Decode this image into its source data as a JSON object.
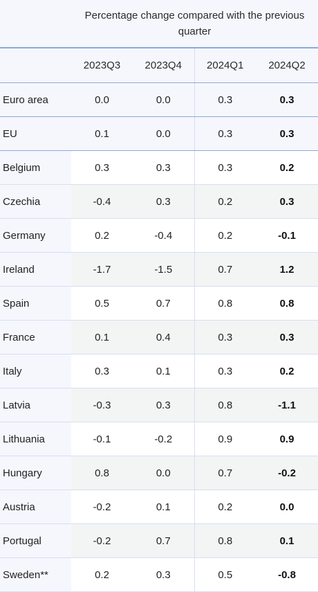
{
  "caption": "Percentage change compared with the previous quarter",
  "columns": [
    "2023Q3",
    "2023Q4",
    "2024Q1",
    "2024Q2"
  ],
  "rows": [
    {
      "country": "Euro area",
      "values": [
        "0.0",
        "0.0",
        "0.3",
        "0.3"
      ]
    },
    {
      "country": "EU",
      "values": [
        "0.1",
        "0.0",
        "0.3",
        "0.3"
      ]
    },
    {
      "country": "Belgium",
      "values": [
        "0.3",
        "0.3",
        "0.3",
        "0.2"
      ]
    },
    {
      "country": "Czechia",
      "values": [
        "-0.4",
        "0.3",
        "0.2",
        "0.3"
      ]
    },
    {
      "country": "Germany",
      "values": [
        "0.2",
        "-0.4",
        "0.2",
        "-0.1"
      ]
    },
    {
      "country": "Ireland",
      "values": [
        "-1.7",
        "-1.5",
        "0.7",
        "1.2"
      ]
    },
    {
      "country": "Spain",
      "values": [
        "0.5",
        "0.7",
        "0.8",
        "0.8"
      ]
    },
    {
      "country": "France",
      "values": [
        "0.1",
        "0.4",
        "0.3",
        "0.3"
      ]
    },
    {
      "country": "Italy",
      "values": [
        "0.3",
        "0.1",
        "0.3",
        "0.2"
      ]
    },
    {
      "country": "Latvia",
      "values": [
        "-0.3",
        "0.3",
        "0.8",
        "-1.1"
      ]
    },
    {
      "country": "Lithuania",
      "values": [
        "-0.1",
        "-0.2",
        "0.9",
        "0.9"
      ]
    },
    {
      "country": "Hungary",
      "values": [
        "0.8",
        "0.0",
        "0.7",
        "-0.2"
      ]
    },
    {
      "country": "Austria",
      "values": [
        "-0.2",
        "0.1",
        "0.2",
        "0.0"
      ]
    },
    {
      "country": "Portugal",
      "values": [
        "-0.2",
        "0.7",
        "0.8",
        "0.1"
      ]
    },
    {
      "country": "Sweden**",
      "values": [
        "0.2",
        "0.3",
        "0.5",
        "-0.8"
      ]
    }
  ]
}
